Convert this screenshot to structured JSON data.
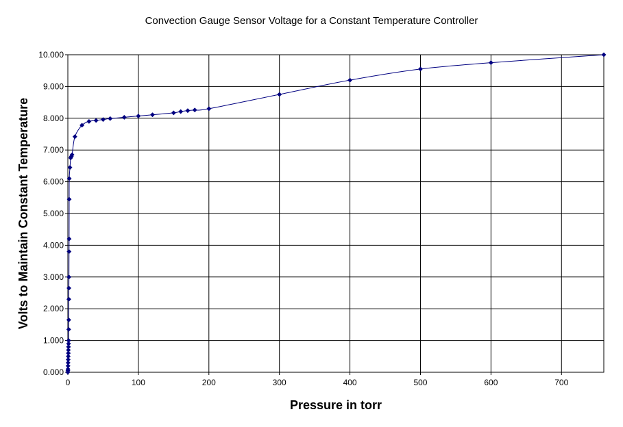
{
  "chart_data": {
    "type": "scatter",
    "title": "Convection Gauge Sensor Voltage for a Constant Temperature Controller",
    "xlabel": "Pressure in torr",
    "ylabel": "Volts to Maintain Constant Temperature",
    "xlim": [
      0,
      760
    ],
    "ylim": [
      0,
      10
    ],
    "x_ticks": [
      0,
      100,
      200,
      300,
      400,
      500,
      600,
      700
    ],
    "y_ticks": [
      0,
      1,
      2,
      3,
      4,
      5,
      6,
      7,
      8,
      9,
      10
    ],
    "x_tick_labels": [
      "0",
      "100",
      "200",
      "300",
      "400",
      "500",
      "600",
      "700"
    ],
    "y_tick_labels": [
      "0.000",
      "1.000",
      "2.000",
      "3.000",
      "4.000",
      "5.000",
      "6.000",
      "7.000",
      "8.000",
      "9.000",
      "10.000"
    ],
    "grid": true,
    "legend": "none",
    "marker": "diamond",
    "line": "smooth",
    "series_color": "#000080",
    "series": [
      {
        "x": [
          0,
          0.1,
          0.2,
          0.3,
          0.4,
          0.5,
          0.6,
          0.7,
          0.8,
          0.9,
          1,
          1.1,
          1.2,
          1.3,
          1.4,
          1.5,
          1.6,
          1.7,
          1.8,
          1.9,
          2,
          3,
          4,
          5,
          6,
          10,
          20,
          30,
          40,
          50,
          60,
          80,
          100,
          120,
          150,
          160,
          170,
          180,
          200,
          300,
          400,
          500,
          600,
          760
        ],
        "y": [
          0.0,
          0.05,
          0.1,
          0.2,
          0.3,
          0.4,
          0.5,
          0.6,
          0.7,
          0.8,
          0.9,
          1.0,
          1.35,
          1.65,
          2.3,
          2.65,
          3.0,
          3.8,
          4.2,
          5.45,
          6.1,
          6.45,
          6.75,
          6.8,
          6.85,
          7.42,
          7.78,
          7.9,
          7.93,
          7.96,
          7.99,
          8.03,
          8.07,
          8.11,
          8.17,
          8.21,
          8.24,
          8.26,
          8.3,
          8.75,
          9.2,
          9.55,
          9.75,
          10.0
        ]
      }
    ]
  }
}
